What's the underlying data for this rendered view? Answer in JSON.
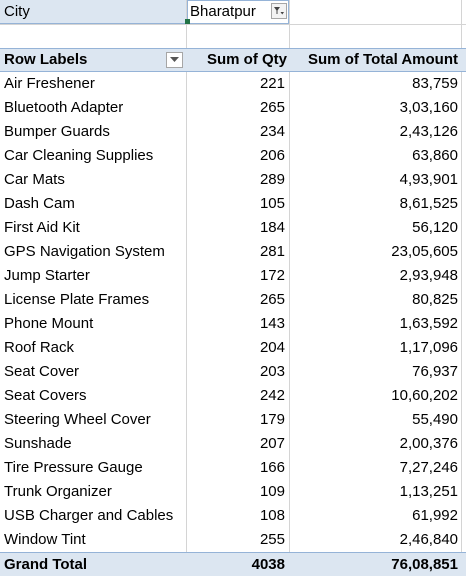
{
  "filter": {
    "field_label": "City",
    "selected_value": "Bharatpur",
    "filter_icon": "filter-dropdown-icon"
  },
  "pivot": {
    "headers": {
      "row_labels": "Row Labels",
      "qty": "Sum of Qty",
      "amount": "Sum of Total Amount",
      "dropdown_icon": "chevron-down-icon"
    },
    "rows": [
      {
        "label": "Air Freshener",
        "qty": "221",
        "amount": "83,759"
      },
      {
        "label": "Bluetooth Adapter",
        "qty": "265",
        "amount": "3,03,160"
      },
      {
        "label": "Bumper Guards",
        "qty": "234",
        "amount": "2,43,126"
      },
      {
        "label": "Car Cleaning Supplies",
        "qty": "206",
        "amount": "63,860"
      },
      {
        "label": "Car Mats",
        "qty": "289",
        "amount": "4,93,901"
      },
      {
        "label": "Dash Cam",
        "qty": "105",
        "amount": "8,61,525"
      },
      {
        "label": "First Aid Kit",
        "qty": "184",
        "amount": "56,120"
      },
      {
        "label": "GPS Navigation System",
        "qty": "281",
        "amount": "23,05,605"
      },
      {
        "label": "Jump Starter",
        "qty": "172",
        "amount": "2,93,948"
      },
      {
        "label": "License Plate Frames",
        "qty": "265",
        "amount": "80,825"
      },
      {
        "label": "Phone Mount",
        "qty": "143",
        "amount": "1,63,592"
      },
      {
        "label": "Roof Rack",
        "qty": "204",
        "amount": "1,17,096"
      },
      {
        "label": "Seat Cover",
        "qty": "203",
        "amount": "76,937"
      },
      {
        "label": "Seat Covers",
        "qty": "242",
        "amount": "10,60,202"
      },
      {
        "label": "Steering Wheel Cover",
        "qty": "179",
        "amount": "55,490"
      },
      {
        "label": "Sunshade",
        "qty": "207",
        "amount": "2,00,376"
      },
      {
        "label": "Tire Pressure Gauge",
        "qty": "166",
        "amount": "7,27,246"
      },
      {
        "label": "Trunk Organizer",
        "qty": "109",
        "amount": "1,13,251"
      },
      {
        "label": "USB Charger and Cables",
        "qty": "108",
        "amount": "61,992"
      },
      {
        "label": "Window Tint",
        "qty": "255",
        "amount": "2,46,840"
      }
    ],
    "grand_total": {
      "label": "Grand Total",
      "qty": "4038",
      "amount": "76,08,851"
    }
  }
}
